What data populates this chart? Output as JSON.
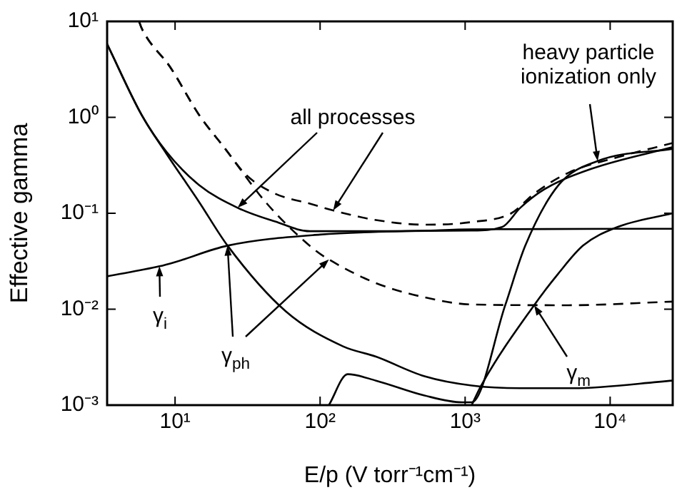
{
  "chart_data": {
    "type": "line",
    "xlabel": "E/p (V torr⁻¹cm⁻¹)",
    "ylabel": "Effective gamma",
    "log": "xy",
    "grid": false,
    "legend": false,
    "marker": "none",
    "xlim": [
      3.4,
      27000
    ],
    "xticks": [
      {
        "value": 10,
        "label": "10¹"
      },
      {
        "value": 100,
        "label": "10²"
      },
      {
        "value": 1000,
        "label": "10³"
      },
      {
        "value": 10000,
        "label": "10⁴"
      }
    ],
    "ylim": [
      0.001,
      10
    ],
    "yticks": [
      {
        "value": 0.001,
        "label": "10⁻³"
      },
      {
        "value": 0.01,
        "label": "10⁻²"
      },
      {
        "value": 0.1,
        "label": "10⁻¹"
      },
      {
        "value": 1,
        "label": "10⁰"
      },
      {
        "value": 10,
        "label": "10¹"
      }
    ],
    "annotations": [
      {
        "text": "all processes",
        "x": 27,
        "y": 0.114
      },
      {
        "text": "heavy particle ionization only",
        "x": 8200,
        "y": 0.35
      },
      {
        "text": "γ$_{i}$",
        "x": 7.8,
        "y": 0.028
      },
      {
        "text": "γ$_{ph}$",
        "x": 23,
        "y": 0.046
      },
      {
        "text": "γ$_{m}$",
        "x": 2990,
        "y": 0.011
      }
    ],
    "series": [
      {
        "color": "#000000",
        "line_style": "solid",
        "x": [
          3.4,
          5.9,
          8.7,
          14.7,
          27,
          49,
          85,
          230,
          1100,
          1800,
          2400,
          3500,
          7400,
          27000
        ],
        "values": [
          5.8,
          1.05,
          0.44,
          0.196,
          0.114,
          0.082,
          0.065,
          0.065,
          0.066,
          0.072,
          0.114,
          0.177,
          0.29,
          0.49
        ]
      },
      {
        "color": "#000000",
        "line_style": "solid",
        "x": [
          3.4,
          7.8,
          10,
          23,
          100,
          560,
          1100,
          27000
        ],
        "values": [
          0.022,
          0.028,
          0.031,
          0.046,
          0.06,
          0.066,
          0.068,
          0.069
        ]
      },
      {
        "color": "#000000",
        "line_style": "solid",
        "x": [
          3.4,
          5.9,
          8.7,
          14.7,
          23,
          58,
          144,
          243,
          525,
          1110,
          2400,
          5500,
          27000
        ],
        "values": [
          5.8,
          1.05,
          0.42,
          0.13,
          0.046,
          0.0095,
          0.0041,
          0.0032,
          0.002,
          0.0016,
          0.0015,
          0.0015,
          0.0018
        ]
      },
      {
        "color": "#000000",
        "line_style": "solid",
        "x": [
          115,
          155,
          243,
          525,
          950,
          1110,
          1890,
          2600,
          4400,
          8200,
          27000
        ],
        "values": [
          0.001,
          0.0021,
          0.0018,
          0.00126,
          0.00107,
          0.00107,
          0.011,
          0.046,
          0.196,
          0.35,
          0.47
        ]
      },
      {
        "color": "#000000",
        "line_style": "solid",
        "x": [
          1110,
          1290,
          2990,
          4400,
          6500,
          11000,
          27000
        ],
        "values": [
          0.001,
          0.0016,
          0.011,
          0.0236,
          0.046,
          0.071,
          0.1
        ]
      },
      {
        "color": "#000000",
        "line_style": "dashed",
        "x": [
          5.65,
          5.9,
          9.3,
          14.7,
          21.7,
          31,
          49,
          85,
          123,
          243,
          525,
          1110,
          2080,
          2990,
          5170,
          11000,
          27000
        ],
        "values": [
          10,
          8.4,
          3.3,
          1.05,
          0.49,
          0.25,
          0.16,
          0.126,
          0.107,
          0.085,
          0.076,
          0.081,
          0.1,
          0.16,
          0.265,
          0.38,
          0.54
        ]
      },
      {
        "color": "#000000",
        "line_style": "dashed",
        "x": [
          5.65,
          5.9,
          9.3,
          14.7,
          21.7,
          43,
          91,
          115,
          243,
          525,
          1110,
          5170,
          27000
        ],
        "values": [
          10,
          8.4,
          3.3,
          1.05,
          0.49,
          0.126,
          0.042,
          0.033,
          0.0187,
          0.0133,
          0.0112,
          0.011,
          0.012
        ]
      }
    ]
  }
}
